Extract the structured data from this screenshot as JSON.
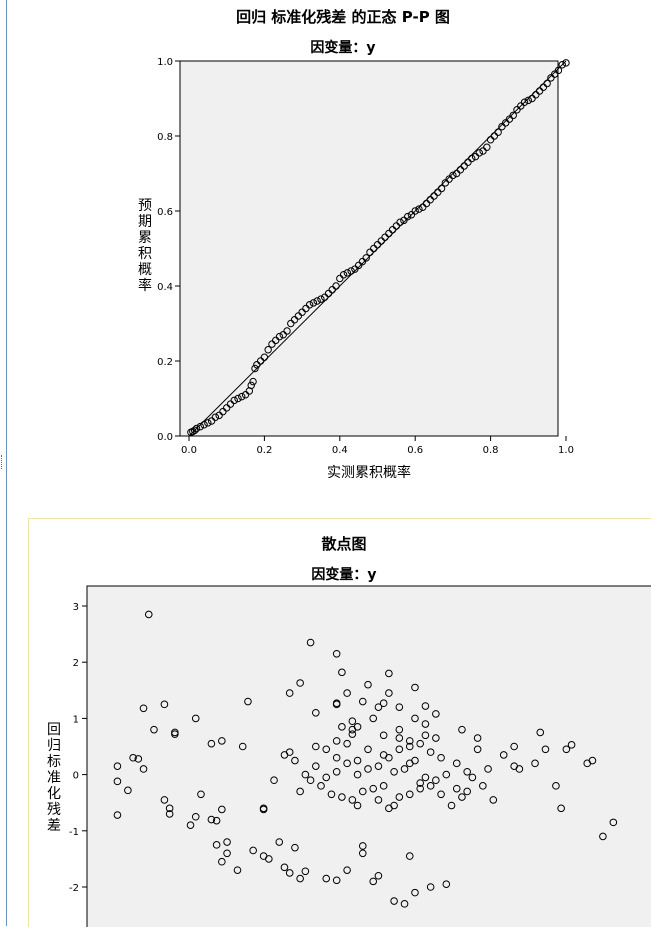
{
  "charts": [
    {
      "id": "pp",
      "title": "回归 标准化残差 的正态 P-P 图",
      "subtitle": "因变量：y",
      "xlabel": "实测累积概率",
      "ylabel": "预期累积概率",
      "xticks": [
        "0.0",
        "0.2",
        "0.4",
        "0.6",
        "0.8",
        "1.0"
      ],
      "yticks": [
        "0.0",
        "0.2",
        "0.4",
        "0.6",
        "0.8",
        "1.0"
      ]
    },
    {
      "id": "scatter",
      "title": "散点图",
      "subtitle": "因变量：y",
      "ylabel": "回归标准化残差",
      "yticks": [
        "3",
        "2",
        "1",
        "0",
        "-1",
        "-2"
      ]
    }
  ],
  "chart_data": [
    {
      "type": "scatter",
      "title": "回归 标准化残差 的正态 P-P 图",
      "subtitle": "因变量：y",
      "xlabel": "实测累积概率",
      "ylabel": "预期累积概率",
      "xlim": [
        0,
        1
      ],
      "ylim": [
        0,
        1
      ],
      "grid": false,
      "reference_line": [
        [
          0,
          0
        ],
        [
          1,
          1
        ]
      ],
      "points": [
        [
          0.005,
          0.01
        ],
        [
          0.01,
          0.012
        ],
        [
          0.015,
          0.015
        ],
        [
          0.02,
          0.02
        ],
        [
          0.03,
          0.025
        ],
        [
          0.04,
          0.03
        ],
        [
          0.05,
          0.035
        ],
        [
          0.06,
          0.04
        ],
        [
          0.07,
          0.05
        ],
        [
          0.08,
          0.055
        ],
        [
          0.09,
          0.065
        ],
        [
          0.1,
          0.075
        ],
        [
          0.11,
          0.085
        ],
        [
          0.12,
          0.095
        ],
        [
          0.13,
          0.1
        ],
        [
          0.14,
          0.105
        ],
        [
          0.15,
          0.11
        ],
        [
          0.16,
          0.12
        ],
        [
          0.165,
          0.135
        ],
        [
          0.17,
          0.145
        ],
        [
          0.175,
          0.18
        ],
        [
          0.18,
          0.19
        ],
        [
          0.19,
          0.2
        ],
        [
          0.2,
          0.21
        ],
        [
          0.21,
          0.23
        ],
        [
          0.22,
          0.245
        ],
        [
          0.23,
          0.255
        ],
        [
          0.24,
          0.265
        ],
        [
          0.25,
          0.27
        ],
        [
          0.26,
          0.28
        ],
        [
          0.27,
          0.3
        ],
        [
          0.28,
          0.31
        ],
        [
          0.29,
          0.32
        ],
        [
          0.3,
          0.33
        ],
        [
          0.31,
          0.34
        ],
        [
          0.32,
          0.35
        ],
        [
          0.33,
          0.355
        ],
        [
          0.34,
          0.36
        ],
        [
          0.35,
          0.365
        ],
        [
          0.36,
          0.37
        ],
        [
          0.37,
          0.38
        ],
        [
          0.38,
          0.39
        ],
        [
          0.39,
          0.4
        ],
        [
          0.4,
          0.42
        ],
        [
          0.41,
          0.43
        ],
        [
          0.42,
          0.435
        ],
        [
          0.43,
          0.44
        ],
        [
          0.44,
          0.445
        ],
        [
          0.45,
          0.455
        ],
        [
          0.46,
          0.465
        ],
        [
          0.47,
          0.475
        ],
        [
          0.48,
          0.49
        ],
        [
          0.49,
          0.5
        ],
        [
          0.5,
          0.51
        ],
        [
          0.51,
          0.52
        ],
        [
          0.52,
          0.53
        ],
        [
          0.53,
          0.54
        ],
        [
          0.54,
          0.55
        ],
        [
          0.55,
          0.56
        ],
        [
          0.56,
          0.57
        ],
        [
          0.57,
          0.575
        ],
        [
          0.58,
          0.585
        ],
        [
          0.59,
          0.59
        ],
        [
          0.6,
          0.6
        ],
        [
          0.61,
          0.605
        ],
        [
          0.62,
          0.61
        ],
        [
          0.63,
          0.62
        ],
        [
          0.64,
          0.63
        ],
        [
          0.65,
          0.64
        ],
        [
          0.66,
          0.65
        ],
        [
          0.67,
          0.66
        ],
        [
          0.68,
          0.675
        ],
        [
          0.69,
          0.685
        ],
        [
          0.7,
          0.695
        ],
        [
          0.71,
          0.7
        ],
        [
          0.72,
          0.71
        ],
        [
          0.73,
          0.72
        ],
        [
          0.74,
          0.73
        ],
        [
          0.75,
          0.74
        ],
        [
          0.76,
          0.745
        ],
        [
          0.77,
          0.755
        ],
        [
          0.78,
          0.76
        ],
        [
          0.79,
          0.77
        ],
        [
          0.8,
          0.79
        ],
        [
          0.81,
          0.8
        ],
        [
          0.82,
          0.81
        ],
        [
          0.83,
          0.825
        ],
        [
          0.84,
          0.835
        ],
        [
          0.85,
          0.845
        ],
        [
          0.86,
          0.855
        ],
        [
          0.87,
          0.87
        ],
        [
          0.88,
          0.88
        ],
        [
          0.89,
          0.89
        ],
        [
          0.9,
          0.895
        ],
        [
          0.91,
          0.9
        ],
        [
          0.92,
          0.91
        ],
        [
          0.93,
          0.92
        ],
        [
          0.94,
          0.93
        ],
        [
          0.95,
          0.94
        ],
        [
          0.96,
          0.955
        ],
        [
          0.97,
          0.965
        ],
        [
          0.98,
          0.975
        ],
        [
          0.99,
          0.99
        ],
        [
          1.0,
          0.995
        ]
      ]
    },
    {
      "type": "scatter",
      "title": "散点图",
      "subtitle": "因变量：y",
      "xlabel": "",
      "ylabel": "回归标准化残差",
      "ylim": [
        -2.5,
        3.3
      ],
      "xlim": [
        0,
        1
      ],
      "grid": false,
      "note": "x values are normalized positions; the x axis tick labels are not visible in the screenshot",
      "points": [
        [
          0.08,
          2.85
        ],
        [
          0.39,
          2.35
        ],
        [
          0.44,
          2.15
        ],
        [
          0.45,
          1.82
        ],
        [
          0.54,
          1.8
        ],
        [
          0.59,
          1.55
        ],
        [
          0.5,
          1.6
        ],
        [
          0.37,
          1.63
        ],
        [
          0.35,
          1.45
        ],
        [
          0.46,
          1.45
        ],
        [
          0.54,
          1.45
        ],
        [
          0.27,
          1.3
        ],
        [
          0.49,
          1.3
        ],
        [
          0.52,
          1.2
        ],
        [
          0.56,
          1.2
        ],
        [
          0.07,
          1.18
        ],
        [
          0.11,
          1.25
        ],
        [
          0.44,
          1.25
        ],
        [
          0.44,
          1.27
        ],
        [
          0.53,
          1.27
        ],
        [
          0.61,
          1.22
        ],
        [
          0.63,
          1.08
        ],
        [
          0.4,
          1.1
        ],
        [
          0.59,
          1.0
        ],
        [
          0.51,
          1.0
        ],
        [
          0.17,
          1.0
        ],
        [
          0.09,
          0.8
        ],
        [
          0.48,
          0.85
        ],
        [
          0.56,
          0.8
        ],
        [
          0.68,
          0.8
        ],
        [
          0.71,
          0.65
        ],
        [
          0.58,
          0.6
        ],
        [
          0.47,
          0.72
        ],
        [
          0.44,
          0.6
        ],
        [
          0.4,
          0.5
        ],
        [
          0.35,
          0.4
        ],
        [
          0.26,
          0.5
        ],
        [
          0.22,
          0.6
        ],
        [
          0.2,
          0.55
        ],
        [
          0.13,
          0.75
        ],
        [
          0.47,
          0.8
        ],
        [
          0.61,
          0.7
        ],
        [
          0.63,
          0.65
        ],
        [
          0.78,
          0.5
        ],
        [
          0.89,
          0.53
        ],
        [
          0.05,
          0.3
        ],
        [
          0.13,
          0.72
        ],
        [
          0.07,
          0.1
        ],
        [
          0.06,
          0.28
        ],
        [
          0.02,
          -0.12
        ],
        [
          0.02,
          0.15
        ],
        [
          0.04,
          -0.28
        ],
        [
          0.02,
          -0.72
        ],
        [
          0.11,
          -0.45
        ],
        [
          0.12,
          -0.7
        ],
        [
          0.12,
          -0.6
        ],
        [
          0.16,
          -0.9
        ],
        [
          0.17,
          -0.75
        ],
        [
          0.18,
          -0.35
        ],
        [
          0.2,
          -0.8
        ],
        [
          0.21,
          -0.82
        ],
        [
          0.22,
          -0.62
        ],
        [
          0.23,
          -1.2
        ],
        [
          0.21,
          -1.25
        ],
        [
          0.23,
          -1.4
        ],
        [
          0.22,
          -1.55
        ],
        [
          0.25,
          -1.7
        ],
        [
          0.28,
          -1.35
        ],
        [
          0.3,
          -1.45
        ],
        [
          0.31,
          -1.5
        ],
        [
          0.33,
          -1.2
        ],
        [
          0.36,
          -1.3
        ],
        [
          0.34,
          -1.65
        ],
        [
          0.35,
          -1.75
        ],
        [
          0.37,
          -1.85
        ],
        [
          0.38,
          -1.72
        ],
        [
          0.42,
          -1.85
        ],
        [
          0.44,
          -1.88
        ],
        [
          0.46,
          -1.7
        ],
        [
          0.49,
          -1.4
        ],
        [
          0.51,
          -1.9
        ],
        [
          0.52,
          -1.8
        ],
        [
          0.55,
          -2.25
        ],
        [
          0.57,
          -2.3
        ],
        [
          0.59,
          -2.1
        ],
        [
          0.62,
          -2.0
        ],
        [
          0.65,
          -1.95
        ],
        [
          0.58,
          -1.45
        ],
        [
          0.55,
          -0.55
        ],
        [
          0.56,
          -0.4
        ],
        [
          0.58,
          -0.35
        ],
        [
          0.6,
          -0.15
        ],
        [
          0.62,
          -0.2
        ],
        [
          0.64,
          -0.35
        ],
        [
          0.66,
          -0.55
        ],
        [
          0.68,
          -0.4
        ],
        [
          0.7,
          -0.05
        ],
        [
          0.72,
          -0.2
        ],
        [
          0.73,
          0.1
        ],
        [
          0.74,
          -0.45
        ],
        [
          0.76,
          0.35
        ],
        [
          0.78,
          0.15
        ],
        [
          0.82,
          0.2
        ],
        [
          0.84,
          0.45
        ],
        [
          0.86,
          -0.2
        ],
        [
          0.87,
          -0.6
        ],
        [
          0.92,
          0.2
        ],
        [
          0.93,
          0.25
        ],
        [
          0.95,
          -1.1
        ],
        [
          0.97,
          -0.85
        ],
        [
          0.88,
          0.45
        ],
        [
          0.83,
          0.75
        ],
        [
          0.79,
          0.1
        ],
        [
          0.71,
          0.45
        ],
        [
          0.69,
          0.05
        ],
        [
          0.67,
          0.2
        ],
        [
          0.64,
          0.3
        ],
        [
          0.62,
          0.4
        ],
        [
          0.6,
          0.55
        ],
        [
          0.58,
          0.5
        ],
        [
          0.56,
          0.45
        ],
        [
          0.54,
          0.3
        ],
        [
          0.52,
          0.15
        ],
        [
          0.5,
          0.1
        ],
        [
          0.48,
          0.0
        ],
        [
          0.46,
          0.2
        ],
        [
          0.44,
          0.3
        ],
        [
          0.42,
          0.45
        ],
        [
          0.4,
          0.15
        ],
        [
          0.38,
          0.0
        ],
        [
          0.36,
          0.25
        ],
        [
          0.34,
          0.35
        ],
        [
          0.32,
          -0.1
        ],
        [
          0.3,
          -0.6
        ],
        [
          0.3,
          -0.62
        ],
        [
          0.37,
          -0.3
        ],
        [
          0.39,
          -0.1
        ],
        [
          0.41,
          -0.2
        ],
        [
          0.43,
          -0.35
        ],
        [
          0.45,
          -0.4
        ],
        [
          0.47,
          -0.45
        ],
        [
          0.49,
          -0.3
        ],
        [
          0.51,
          -0.25
        ],
        [
          0.53,
          -0.2
        ],
        [
          0.55,
          0.05
        ],
        [
          0.57,
          0.1
        ],
        [
          0.59,
          0.25
        ],
        [
          0.61,
          -0.05
        ],
        [
          0.63,
          -0.1
        ],
        [
          0.65,
          0.0
        ],
        [
          0.67,
          -0.25
        ],
        [
          0.69,
          -0.3
        ],
        [
          0.49,
          -1.27
        ],
        [
          0.48,
          -0.55
        ],
        [
          0.52,
          -0.45
        ],
        [
          0.54,
          -0.6
        ],
        [
          0.56,
          0.65
        ],
        [
          0.6,
          -0.25
        ],
        [
          0.58,
          0.2
        ],
        [
          0.46,
          0.55
        ],
        [
          0.44,
          0.05
        ],
        [
          0.42,
          -0.05
        ],
        [
          0.53,
          0.35
        ],
        [
          0.5,
          0.45
        ],
        [
          0.48,
          0.25
        ],
        [
          0.45,
          0.85
        ],
        [
          0.47,
          0.95
        ],
        [
          0.61,
          0.9
        ],
        [
          0.53,
          0.7
        ]
      ]
    }
  ]
}
